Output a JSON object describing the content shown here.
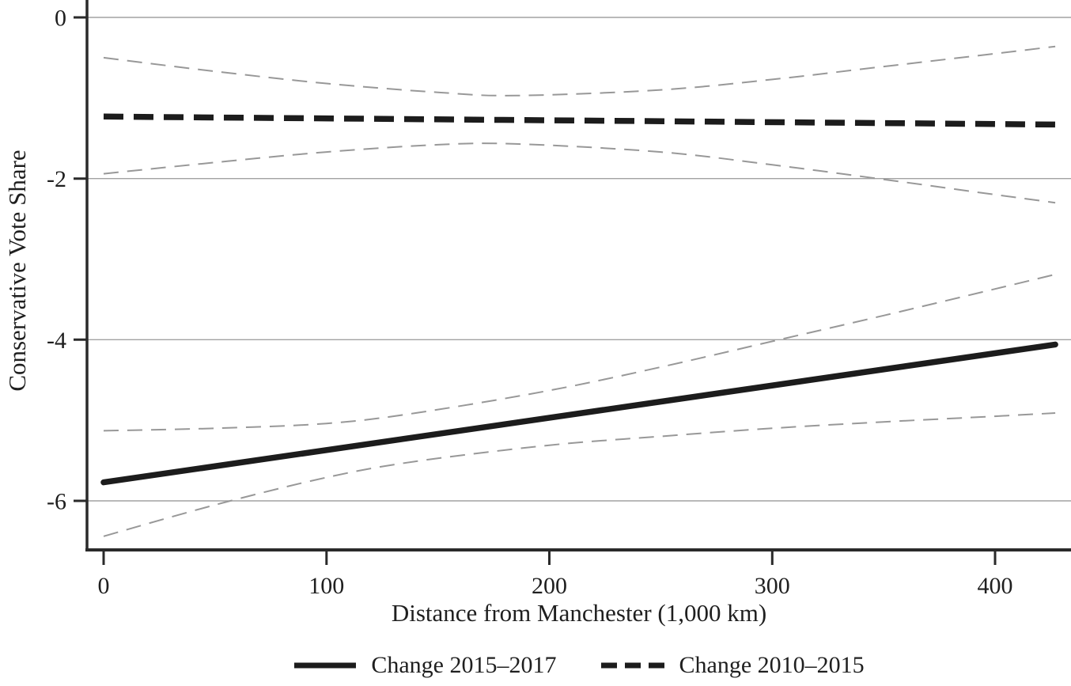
{
  "chart_data": {
    "type": "line",
    "title": "",
    "xlabel": "Distance from Manchester (1,000 km)",
    "ylabel": "Conservative Vote Share",
    "xlim": [
      -7.5,
      434
    ],
    "ylim": [
      -6.6,
      0.22
    ],
    "x_ticks": {
      "values": [
        0,
        100,
        200,
        300,
        400
      ],
      "labels": [
        "0",
        "100",
        "200",
        "300",
        "400"
      ]
    },
    "y_ticks": {
      "values": [
        0,
        -2,
        -4,
        -6
      ],
      "labels": [
        "0",
        "-2",
        "-4",
        "-6"
      ]
    },
    "grid": "horizontal-only",
    "legend_position": "bottom-center",
    "colors": {
      "estimate": "#1c1c1c",
      "ci": "#989898",
      "gridline": "#a2a2a2",
      "axis": "#2a2a2a",
      "text": "#1f1f1f",
      "background": "#ffffff"
    },
    "series": [
      {
        "name": "Change 2015–2017",
        "role": "point-estimate",
        "line": "solid",
        "weight": "thick",
        "color": "#1c1c1c",
        "x": [
          0,
          427
        ],
        "y": [
          -5.77,
          -4.06
        ]
      },
      {
        "name": "Change 2015–2017 CI upper",
        "role": "ci-upper",
        "line": "dashed",
        "weight": "thin",
        "color": "#989898",
        "x": [
          0,
          50,
          100,
          140,
          200,
          250,
          300,
          350,
          400,
          427
        ],
        "y": [
          -5.13,
          -5.1,
          -5.04,
          -4.91,
          -4.63,
          -4.34,
          -4.02,
          -3.7,
          -3.37,
          -3.19
        ]
      },
      {
        "name": "Change 2015–2017 CI lower",
        "role": "ci-lower",
        "line": "dashed",
        "weight": "thin",
        "color": "#989898",
        "x": [
          0,
          50,
          100,
          140,
          200,
          250,
          300,
          350,
          400,
          427
        ],
        "y": [
          -6.44,
          -6.05,
          -5.71,
          -5.51,
          -5.31,
          -5.2,
          -5.1,
          -5.02,
          -4.95,
          -4.91
        ]
      },
      {
        "name": "Change 2010–2015",
        "role": "point-estimate",
        "line": "dashed",
        "weight": "thick",
        "color": "#1c1c1c",
        "x": [
          0,
          427
        ],
        "y": [
          -1.23,
          -1.33
        ]
      },
      {
        "name": "Change 2010–2015 CI upper",
        "role": "ci-upper",
        "line": "dashed",
        "weight": "thin",
        "color": "#989898",
        "x": [
          0,
          50,
          100,
          150,
          185,
          250,
          300,
          350,
          400,
          427
        ],
        "y": [
          -0.5,
          -0.67,
          -0.82,
          -0.93,
          -0.97,
          -0.9,
          -0.77,
          -0.61,
          -0.45,
          -0.36
        ]
      },
      {
        "name": "Change 2010–2015 CI lower",
        "role": "ci-lower",
        "line": "dashed",
        "weight": "thin",
        "color": "#989898",
        "x": [
          0,
          50,
          100,
          150,
          185,
          250,
          300,
          350,
          400,
          427
        ],
        "y": [
          -1.94,
          -1.8,
          -1.67,
          -1.58,
          -1.57,
          -1.67,
          -1.83,
          -2.01,
          -2.2,
          -2.3
        ]
      }
    ]
  },
  "legend": {
    "items": [
      {
        "swatch": "solid-line",
        "series_index": 0
      },
      {
        "swatch": "thick-dashed-line",
        "series_index": 3
      }
    ]
  }
}
